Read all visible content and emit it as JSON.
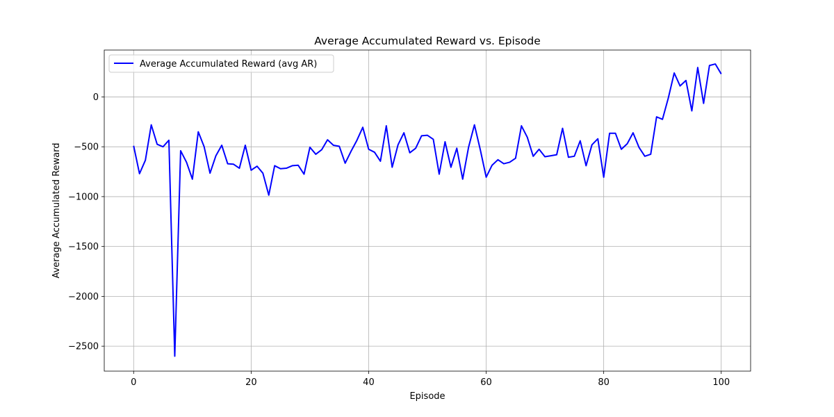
{
  "chart_data": {
    "type": "line",
    "title": "Average Accumulated Reward vs. Episode",
    "xlabel": "Episode",
    "ylabel": "Average Accumulated Reward",
    "xlim": [
      -5,
      105
    ],
    "ylim": [
      -2750,
      470
    ],
    "xticks": [
      0,
      20,
      40,
      60,
      80,
      100
    ],
    "xtick_labels": [
      "0",
      "20",
      "40",
      "60",
      "80",
      "100"
    ],
    "yticks": [
      0,
      -500,
      -1000,
      -1500,
      -2000,
      -2500
    ],
    "ytick_labels": [
      "0",
      "−500",
      "−1000",
      "−1500",
      "−2000",
      "−2500"
    ],
    "grid": true,
    "legend_position": "upper-left",
    "series": [
      {
        "name": "Average Accumulated Reward (avg AR)",
        "color": "#0000ff",
        "x": [
          0,
          1,
          2,
          3,
          4,
          5,
          6,
          7,
          8,
          9,
          10,
          11,
          12,
          13,
          14,
          15,
          16,
          17,
          18,
          19,
          20,
          21,
          22,
          23,
          24,
          25,
          26,
          27,
          28,
          29,
          30,
          31,
          32,
          33,
          34,
          35,
          36,
          37,
          38,
          39,
          40,
          41,
          42,
          43,
          44,
          45,
          46,
          47,
          48,
          49,
          50,
          51,
          52,
          53,
          54,
          55,
          56,
          57,
          58,
          59,
          60,
          61,
          62,
          63,
          64,
          65,
          66,
          67,
          68,
          69,
          70,
          71,
          72,
          73,
          74,
          75,
          76,
          77,
          78,
          79,
          80,
          81,
          82,
          83,
          84,
          85,
          86,
          87,
          88,
          89,
          90,
          91,
          92,
          93,
          94,
          95,
          96,
          97,
          98,
          99,
          100
        ],
        "values": [
          -490,
          -770,
          -635,
          -280,
          -475,
          -500,
          -435,
          -2600,
          -540,
          -655,
          -825,
          -350,
          -500,
          -765,
          -590,
          -485,
          -670,
          -675,
          -715,
          -485,
          -735,
          -695,
          -765,
          -985,
          -690,
          -720,
          -715,
          -690,
          -685,
          -775,
          -505,
          -575,
          -530,
          -430,
          -485,
          -495,
          -665,
          -545,
          -435,
          -305,
          -525,
          -555,
          -645,
          -290,
          -705,
          -480,
          -360,
          -560,
          -515,
          -390,
          -385,
          -425,
          -775,
          -450,
          -705,
          -515,
          -825,
          -505,
          -280,
          -530,
          -805,
          -685,
          -630,
          -670,
          -655,
          -615,
          -290,
          -405,
          -595,
          -525,
          -600,
          -590,
          -580,
          -315,
          -605,
          -595,
          -440,
          -690,
          -480,
          -420,
          -805,
          -365,
          -365,
          -525,
          -470,
          -360,
          -505,
          -595,
          -575,
          -200,
          -225,
          -10,
          240,
          110,
          165,
          -140,
          295,
          -65,
          315,
          330,
          230
        ]
      }
    ]
  }
}
